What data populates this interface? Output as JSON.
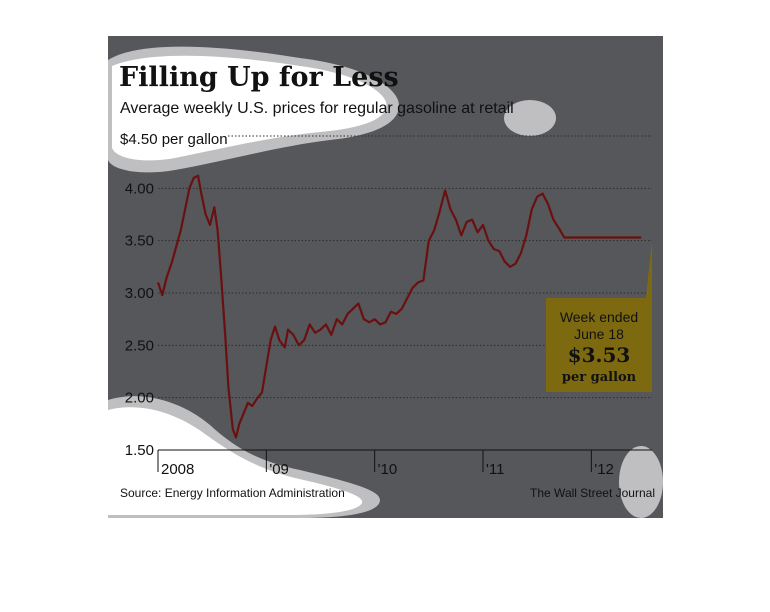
{
  "chart_data": {
    "type": "line",
    "title": "Filling Up for Less",
    "subtitle": "Average weekly U.S. prices for regular gasoline at retail",
    "y_top_label": "$4.50 per gallon",
    "yticks": [
      "4.00",
      "3.50",
      "3.00",
      "2.50",
      "2.00",
      "1.50"
    ],
    "ylim": [
      1.5,
      4.5
    ],
    "xlim": [
      2008.0,
      2012.56
    ],
    "xticks": [
      {
        "x": 2008.0,
        "label": "2008"
      },
      {
        "x": 2009.0,
        "label": "'09"
      },
      {
        "x": 2010.0,
        "label": "'10"
      },
      {
        "x": 2011.0,
        "label": "'11"
      },
      {
        "x": 2012.0,
        "label": "'12"
      }
    ],
    "grid": true,
    "series": [
      {
        "name": "",
        "color": "#6b1010",
        "x": [
          2008.0,
          2008.04,
          2008.08,
          2008.13,
          2008.17,
          2008.21,
          2008.25,
          2008.29,
          2008.33,
          2008.37,
          2008.4,
          2008.44,
          2008.48,
          2008.52,
          2008.55,
          2008.58,
          2008.62,
          2008.65,
          2008.67,
          2008.69,
          2008.72,
          2008.75,
          2008.79,
          2008.83,
          2008.87,
          2008.92,
          2008.96,
          2009.0,
          2009.04,
          2009.08,
          2009.12,
          2009.17,
          2009.2,
          2009.25,
          2009.3,
          2009.35,
          2009.4,
          2009.45,
          2009.5,
          2009.55,
          2009.6,
          2009.65,
          2009.7,
          2009.75,
          2009.8,
          2009.85,
          2009.9,
          2009.95,
          2010.0,
          2010.05,
          2010.1,
          2010.15,
          2010.2,
          2010.25,
          2010.3,
          2010.35,
          2010.4,
          2010.45,
          2010.5,
          2010.55,
          2010.6,
          2010.65,
          2010.7,
          2010.75,
          2010.8,
          2010.85,
          2010.9,
          2010.95,
          2011.0,
          2011.05,
          2011.1,
          2011.15,
          2011.2,
          2011.25,
          2011.3,
          2011.35,
          2011.4,
          2011.45,
          2011.5,
          2011.55,
          2011.6,
          2011.65,
          2011.7,
          2011.75,
          2011.8,
          2011.85,
          2011.9,
          2011.95,
          2012.0,
          2012.05,
          2012.1,
          2012.15,
          2012.2,
          2012.25,
          2012.3,
          2012.35,
          2012.4,
          2012.46
        ],
        "values": [
          3.1,
          2.98,
          3.15,
          3.3,
          3.45,
          3.6,
          3.8,
          4.0,
          4.1,
          4.12,
          3.95,
          3.75,
          3.65,
          3.82,
          3.6,
          3.2,
          2.6,
          2.1,
          1.9,
          1.7,
          1.62,
          1.75,
          1.85,
          1.95,
          1.92,
          2.0,
          2.05,
          2.3,
          2.55,
          2.68,
          2.55,
          2.48,
          2.65,
          2.6,
          2.5,
          2.55,
          2.7,
          2.62,
          2.65,
          2.7,
          2.6,
          2.75,
          2.7,
          2.8,
          2.85,
          2.9,
          2.75,
          2.72,
          2.75,
          2.7,
          2.72,
          2.82,
          2.8,
          2.85,
          2.95,
          3.05,
          3.1,
          3.12,
          3.5,
          3.6,
          3.78,
          3.98,
          3.8,
          3.7,
          3.55,
          3.68,
          3.7,
          3.58,
          3.65,
          3.5,
          3.42,
          3.4,
          3.3,
          3.25,
          3.28,
          3.38,
          3.55,
          3.8,
          3.92,
          3.95,
          3.85,
          3.7,
          3.62,
          3.53,
          3.53,
          3.53,
          3.53,
          3.53,
          3.53,
          3.53,
          3.53,
          3.53,
          3.53,
          3.53,
          3.53,
          3.53,
          3.53,
          3.53
        ]
      }
    ],
    "annotation": {
      "line1": "Week ended",
      "line2": "June 18",
      "value": "$3.53",
      "unit": "per gallon"
    },
    "source": "Source: Energy Information Administration",
    "credit": "The Wall Street Journal"
  },
  "colors": {
    "panel_bg": "#56575a",
    "grid": "#2c2c2c",
    "line": "#6b1010",
    "callout_bg": "#7d6a10",
    "blob": "#bfbfc1"
  }
}
